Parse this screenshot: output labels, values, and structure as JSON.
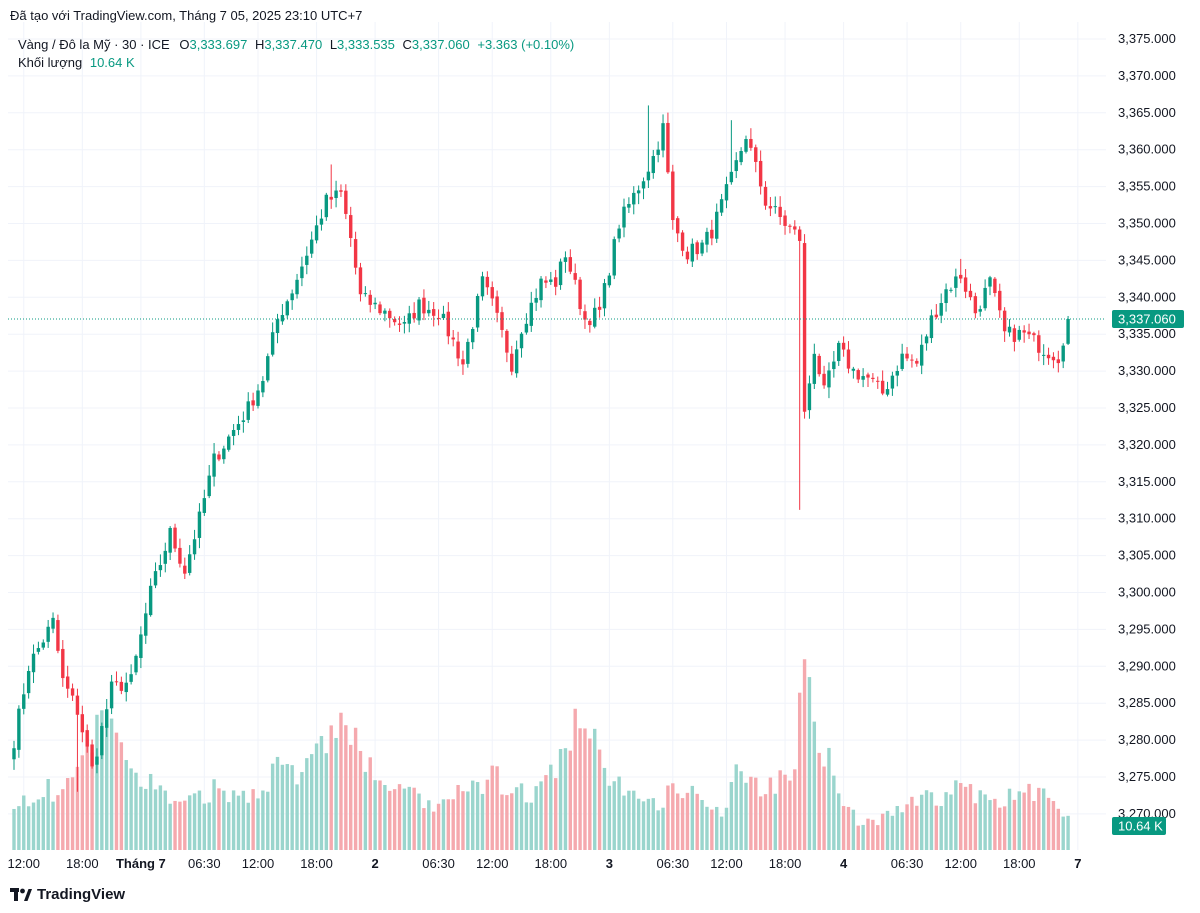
{
  "header": {
    "published_text": "Đã tạo với TradingView.com, Tháng 7 05, 2025 23:10 UTC+7"
  },
  "legend": {
    "symbol": "Vàng / Đô la Mỹ · 30 · ICE",
    "o_label": "O",
    "o_value": "3,333.697",
    "h_label": "H",
    "h_value": "3,337.470",
    "l_label": "L",
    "l_value": "3,333.535",
    "c_label": "C",
    "c_value": "3,337.060",
    "change": "+3.363 (+0.10%)",
    "volume_label": "Khối lượng",
    "volume_value": "10.64 K"
  },
  "footer": {
    "brand": "TradingView",
    "logo_icon": "tradingview-logo-icon"
  },
  "colors": {
    "up": "#089981",
    "down": "#f23645",
    "vol_up": "#9ad5cd",
    "vol_down": "#f5a9ae",
    "grid": "#f0f3fa"
  },
  "chart_data": {
    "type": "candlestick",
    "ylim": [
      3266,
      3377
    ],
    "y_ticks": [
      {
        "value": 3375,
        "label": "3,375.000"
      },
      {
        "value": 3370,
        "label": "3,370.000"
      },
      {
        "value": 3365,
        "label": "3,365.000"
      },
      {
        "value": 3360,
        "label": "3,360.000"
      },
      {
        "value": 3355,
        "label": "3,355.000"
      },
      {
        "value": 3350,
        "label": "3,350.000"
      },
      {
        "value": 3345,
        "label": "3,345.000"
      },
      {
        "value": 3340,
        "label": "3,340.000"
      },
      {
        "value": 3335,
        "label": "3,335.000"
      },
      {
        "value": 3330,
        "label": "3,330.000"
      },
      {
        "value": 3325,
        "label": "3,325.000"
      },
      {
        "value": 3320,
        "label": "3,320.000"
      },
      {
        "value": 3315,
        "label": "3,315.000"
      },
      {
        "value": 3310,
        "label": "3,310.000"
      },
      {
        "value": 3305,
        "label": "3,305.000"
      },
      {
        "value": 3300,
        "label": "3,300.000"
      },
      {
        "value": 3295,
        "label": "3,295.000"
      },
      {
        "value": 3290,
        "label": "3,290.000"
      },
      {
        "value": 3285,
        "label": "3,285.000"
      },
      {
        "value": 3280,
        "label": "3,280.000"
      },
      {
        "value": 3275,
        "label": "3,275.000"
      },
      {
        "value": 3270,
        "label": "3,270.000"
      }
    ],
    "x_ticks": [
      {
        "bar": 2,
        "label": "12:00",
        "bold": false
      },
      {
        "bar": 14,
        "label": "18:00",
        "bold": false
      },
      {
        "bar": 26,
        "label": "Tháng 7",
        "bold": true
      },
      {
        "bar": 39,
        "label": "06:30",
        "bold": false
      },
      {
        "bar": 50,
        "label": "12:00",
        "bold": false
      },
      {
        "bar": 62,
        "label": "18:00",
        "bold": false
      },
      {
        "bar": 74,
        "label": "2",
        "bold": true
      },
      {
        "bar": 87,
        "label": "06:30",
        "bold": false
      },
      {
        "bar": 98,
        "label": "12:00",
        "bold": false
      },
      {
        "bar": 110,
        "label": "18:00",
        "bold": false
      },
      {
        "bar": 122,
        "label": "3",
        "bold": true
      },
      {
        "bar": 135,
        "label": "06:30",
        "bold": false
      },
      {
        "bar": 146,
        "label": "12:00",
        "bold": false
      },
      {
        "bar": 158,
        "label": "18:00",
        "bold": false
      },
      {
        "bar": 170,
        "label": "4",
        "bold": true
      },
      {
        "bar": 183,
        "label": "06:30",
        "bold": false
      },
      {
        "bar": 194,
        "label": "12:00",
        "bold": false
      },
      {
        "bar": 206,
        "label": "18:00",
        "bold": false
      },
      {
        "bar": 218,
        "label": "7",
        "bold": true
      }
    ],
    "last_price": {
      "value": 3337.06,
      "label": "3,337.060"
    },
    "last_volume_label": "10.64 K",
    "anchors": [
      [
        0,
        3280
      ],
      [
        3,
        3290
      ],
      [
        8,
        3296
      ],
      [
        10,
        3288
      ],
      [
        13,
        3284
      ],
      [
        16,
        3276
      ],
      [
        20,
        3287
      ],
      [
        24,
        3288
      ],
      [
        28,
        3300
      ],
      [
        32,
        3308
      ],
      [
        35,
        3303
      ],
      [
        38,
        3310
      ],
      [
        41,
        3318
      ],
      [
        44,
        3321
      ],
      [
        48,
        3325
      ],
      [
        51,
        3329
      ],
      [
        54,
        3337
      ],
      [
        57,
        3341
      ],
      [
        60,
        3346
      ],
      [
        64,
        3353
      ],
      [
        67,
        3354
      ],
      [
        69,
        3348
      ],
      [
        71,
        3340
      ],
      [
        76,
        3338
      ],
      [
        80,
        3336
      ],
      [
        83,
        3339
      ],
      [
        87,
        3338
      ],
      [
        90,
        3334
      ],
      [
        92,
        3331
      ],
      [
        96,
        3342
      ],
      [
        98,
        3339
      ],
      [
        102,
        3331
      ],
      [
        104,
        3336
      ],
      [
        108,
        3342
      ],
      [
        111,
        3342
      ],
      [
        113,
        3346
      ],
      [
        117,
        3337
      ],
      [
        120,
        3338
      ],
      [
        124,
        3350
      ],
      [
        128,
        3355
      ],
      [
        131,
        3359
      ],
      [
        133,
        3363
      ],
      [
        135,
        3350
      ],
      [
        138,
        3346
      ],
      [
        141,
        3347
      ],
      [
        143,
        3349
      ],
      [
        147,
        3356
      ],
      [
        150,
        3362
      ],
      [
        154,
        3353
      ],
      [
        158,
        3350
      ],
      [
        161,
        3348
      ],
      [
        162,
        3324
      ],
      [
        164,
        3333
      ],
      [
        166,
        3327
      ],
      [
        169,
        3333
      ],
      [
        172,
        3330
      ],
      [
        175,
        3329
      ],
      [
        178,
        3327
      ],
      [
        182,
        3332
      ],
      [
        185,
        3331
      ],
      [
        188,
        3337
      ],
      [
        191,
        3341
      ],
      [
        194,
        3343
      ],
      [
        197,
        3338
      ],
      [
        200,
        3342
      ],
      [
        203,
        3335
      ],
      [
        207,
        3335
      ],
      [
        211,
        3333
      ],
      [
        214,
        3332
      ],
      [
        216,
        3337.06
      ]
    ],
    "spikes": [
      [
        161,
        3311.2
      ],
      [
        130,
        3366
      ],
      [
        147,
        3364
      ],
      [
        65,
        3358
      ],
      [
        13,
        3273
      ],
      [
        8,
        3297
      ],
      [
        194,
        3345.2
      ]
    ],
    "volume_max": 20,
    "volume_anchors": [
      [
        0,
        4.5
      ],
      [
        5,
        5.5
      ],
      [
        10,
        6
      ],
      [
        14,
        8
      ],
      [
        18,
        12
      ],
      [
        22,
        10
      ],
      [
        26,
        7
      ],
      [
        30,
        6
      ],
      [
        34,
        4
      ],
      [
        38,
        5
      ],
      [
        42,
        6
      ],
      [
        46,
        5
      ],
      [
        50,
        6
      ],
      [
        54,
        8
      ],
      [
        58,
        7
      ],
      [
        62,
        9
      ],
      [
        67,
        13
      ],
      [
        70,
        10
      ],
      [
        74,
        7
      ],
      [
        78,
        6
      ],
      [
        82,
        5
      ],
      [
        86,
        4
      ],
      [
        90,
        5
      ],
      [
        94,
        6
      ],
      [
        98,
        7
      ],
      [
        102,
        6
      ],
      [
        106,
        5
      ],
      [
        110,
        7
      ],
      [
        114,
        11
      ],
      [
        117,
        12
      ],
      [
        121,
        8
      ],
      [
        125,
        6
      ],
      [
        129,
        4
      ],
      [
        133,
        5
      ],
      [
        137,
        6
      ],
      [
        141,
        5
      ],
      [
        145,
        4
      ],
      [
        149,
        8
      ],
      [
        153,
        6
      ],
      [
        157,
        7
      ],
      [
        160,
        9
      ],
      [
        161,
        18
      ],
      [
        164,
        13
      ],
      [
        168,
        7
      ],
      [
        170,
        4
      ],
      [
        174,
        2.5
      ],
      [
        178,
        3
      ],
      [
        182,
        4
      ],
      [
        186,
        5
      ],
      [
        190,
        5
      ],
      [
        194,
        6
      ],
      [
        198,
        5
      ],
      [
        202,
        5
      ],
      [
        206,
        5
      ],
      [
        210,
        6
      ],
      [
        213,
        4
      ],
      [
        216,
        3
      ]
    ]
  }
}
